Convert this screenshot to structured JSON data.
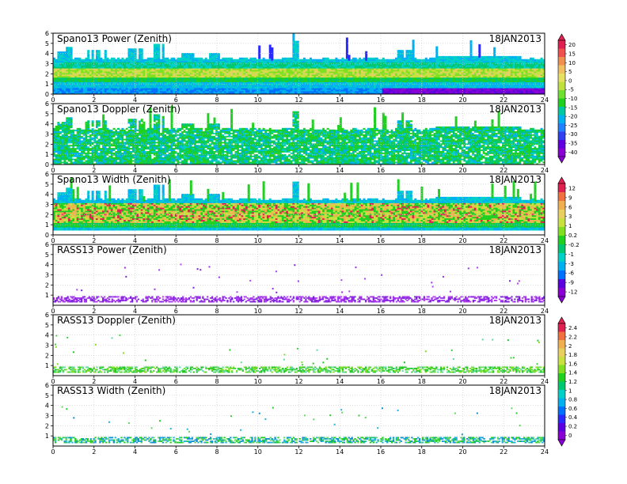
{
  "x_ticks": [
    "0",
    "2",
    "4",
    "6",
    "8",
    "10",
    "12",
    "14",
    "16",
    "18",
    "20",
    "22",
    "24"
  ],
  "panels": [
    {
      "title": "Spano13 Power (Zenith)",
      "date": "18JAN2013",
      "y_ticks": [
        "0",
        "1",
        "2",
        "3",
        "4",
        "5",
        "6"
      ],
      "mode": "spano-power"
    },
    {
      "title": "Spano13 Doppler (Zenith)",
      "date": "18JAN2013",
      "y_ticks": [
        "0",
        "1",
        "2",
        "3",
        "4",
        "5",
        "6"
      ],
      "mode": "spano-doppler"
    },
    {
      "title": "Spano13 Width (Zenith)",
      "date": "18JAN2013",
      "y_ticks": [
        "0",
        "1",
        "2",
        "3",
        "4",
        "5",
        "6"
      ],
      "mode": "spano-width"
    },
    {
      "title": "RASS13 Power (Zenith)",
      "date": "18JAN2013",
      "y_ticks": [
        "1",
        "2",
        "3",
        "4",
        "5",
        "6"
      ],
      "mode": "rass-power"
    },
    {
      "title": "RASS13 Doppler (Zenith)",
      "date": "18JAN2013",
      "y_ticks": [
        "1",
        "2",
        "3",
        "4",
        "5",
        "6"
      ],
      "mode": "rass-doppler"
    },
    {
      "title": "RASS13 Width (Zenith)",
      "date": "18JAN2013",
      "y_ticks": [
        "1",
        "2",
        "3",
        "4",
        "5",
        "6"
      ],
      "mode": "rass-width"
    }
  ],
  "colorbars": [
    {
      "ticks": [
        "20",
        "15",
        "10",
        "5",
        "0",
        "-5",
        "-10",
        "-15",
        "-20",
        "-25",
        "-30",
        "-35",
        "-40"
      ]
    },
    {
      "ticks": [
        "12",
        "9",
        "6",
        "3",
        "1",
        "0.2",
        "-0.2",
        "-1",
        "-3",
        "-6",
        "-9",
        "-12"
      ]
    },
    {
      "ticks": [
        "2.4",
        "2.2",
        "2",
        "1.8",
        "1.6",
        "1.4",
        "1.2",
        "1",
        "0.8",
        "0.6",
        "0.4",
        "0.2",
        "0"
      ]
    }
  ],
  "chart_data": [
    {
      "type": "heatmap",
      "title": "Spano13 Power (Zenith)",
      "xlim": [
        0,
        24
      ],
      "ylim": [
        0,
        6
      ],
      "grid": true,
      "colorbar": [
        -40,
        20
      ],
      "typical_values": {
        "0-1": -32,
        "1-1.5": -12,
        "1.5-2.5": -2,
        "2.5-3.5": -18
      }
    },
    {
      "type": "heatmap",
      "title": "Spano13 Doppler (Zenith)",
      "xlim": [
        0,
        24
      ],
      "ylim": [
        0,
        6
      ],
      "grid": true,
      "typical_values": {
        "0-6": -12
      }
    },
    {
      "type": "heatmap",
      "title": "Spano13 Width (Zenith)",
      "xlim": [
        0,
        24
      ],
      "ylim": [
        0,
        6
      ],
      "grid": true,
      "colorbar": [
        -12,
        12
      ],
      "typical_values": {
        "0.5-1.2": 1,
        "1.2-3": 3
      }
    },
    {
      "type": "heatmap",
      "title": "RASS13 Power (Zenith)",
      "xlim": [
        0,
        24
      ],
      "ylim": [
        0,
        6
      ],
      "grid": true,
      "typical_values": {
        "0.3-0.8": -11
      }
    },
    {
      "type": "heatmap",
      "title": "RASS13 Doppler (Zenith)",
      "xlim": [
        0,
        24
      ],
      "ylim": [
        0,
        6
      ],
      "grid": true,
      "colorbar": [
        0,
        2.4
      ],
      "typical_values": {
        "0.3-0.8": 1.2
      }
    },
    {
      "type": "heatmap",
      "title": "RASS13 Width (Zenith)",
      "xlim": [
        0,
        24
      ],
      "ylim": [
        0,
        6
      ],
      "grid": true,
      "typical_values": {
        "0.3-0.8": 0.8
      }
    }
  ]
}
